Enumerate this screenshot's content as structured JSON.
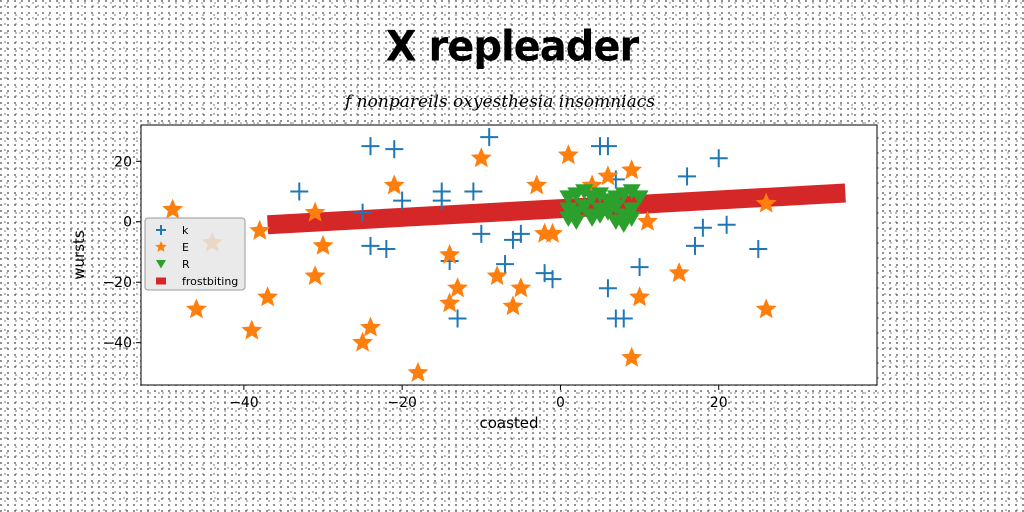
{
  "chart_data": {
    "type": "scatter",
    "title": "X repleader",
    "subtitle": "f nonpareils oxyesthesia insomniacs",
    "xlabel": "coasted",
    "ylabel": "wursts",
    "xlim": [
      -53,
      40
    ],
    "ylim": [
      -54,
      32
    ],
    "xticks": [
      -40,
      -20,
      0,
      20
    ],
    "yticks": [
      -40,
      -20,
      0,
      20
    ],
    "grid": false,
    "legend_position": "center-left",
    "series": [
      {
        "name": "k",
        "marker": "plus",
        "color": "#1f77b4",
        "points": [
          [
            -33,
            10
          ],
          [
            -24,
            25
          ],
          [
            -21,
            24
          ],
          [
            -20,
            7
          ],
          [
            -15,
            10
          ],
          [
            -15,
            7
          ],
          [
            -11,
            10
          ],
          [
            -9,
            28
          ],
          [
            -10,
            -4
          ],
          [
            -25,
            3
          ],
          [
            -24,
            -8
          ],
          [
            -22,
            -9
          ],
          [
            -14,
            -13
          ],
          [
            -13,
            -32
          ],
          [
            -7,
            -14
          ],
          [
            -6,
            -6
          ],
          [
            -5,
            -4
          ],
          [
            -2,
            -17
          ],
          [
            -1,
            -19
          ],
          [
            5,
            25
          ],
          [
            6,
            25
          ],
          [
            7,
            14
          ],
          [
            6,
            -22
          ],
          [
            7,
            -32
          ],
          [
            8,
            -32
          ],
          [
            10,
            -15
          ],
          [
            16,
            15
          ],
          [
            17,
            -8
          ],
          [
            18,
            -2
          ],
          [
            20,
            21
          ],
          [
            21,
            -1
          ],
          [
            25,
            -9
          ]
        ]
      },
      {
        "name": "E",
        "marker": "star",
        "color": "#ff7f0e",
        "points": [
          [
            -49,
            4
          ],
          [
            -44,
            -7
          ],
          [
            -38,
            -3
          ],
          [
            -37,
            -25
          ],
          [
            -31,
            3
          ],
          [
            -30,
            -8
          ],
          [
            -31,
            -18
          ],
          [
            -21,
            12
          ],
          [
            -14,
            -11
          ],
          [
            -14,
            -27
          ],
          [
            -13,
            -22
          ],
          [
            -10,
            21
          ],
          [
            -8,
            -18
          ],
          [
            -6,
            -28
          ],
          [
            -5,
            -22
          ],
          [
            -3,
            12
          ],
          [
            -2,
            -4
          ],
          [
            -1,
            -4
          ],
          [
            1,
            22
          ],
          [
            4,
            12
          ],
          [
            6,
            15
          ],
          [
            9,
            17
          ],
          [
            11,
            0
          ],
          [
            10,
            -25
          ],
          [
            9,
            -45
          ],
          [
            15,
            -17
          ],
          [
            26,
            6
          ],
          [
            26,
            -29
          ],
          [
            -46,
            -29
          ],
          [
            -39,
            -36
          ],
          [
            -24,
            -35
          ],
          [
            -25,
            -40
          ],
          [
            -18,
            -50
          ]
        ]
      },
      {
        "name": "R",
        "marker": "triangle-down",
        "color": "#2ca02c",
        "points": [
          [
            1,
            8
          ],
          [
            2,
            9
          ],
          [
            3,
            10
          ],
          [
            4,
            8
          ],
          [
            5,
            9
          ],
          [
            6,
            7
          ],
          [
            7,
            8
          ],
          [
            8,
            9
          ],
          [
            9,
            10
          ],
          [
            10,
            8
          ],
          [
            1,
            4
          ],
          [
            2,
            3
          ],
          [
            3,
            5
          ],
          [
            4,
            2
          ],
          [
            5,
            4
          ],
          [
            6,
            3
          ],
          [
            7,
            5
          ],
          [
            8,
            2
          ],
          [
            9,
            4
          ],
          [
            1,
            1
          ],
          [
            2,
            0
          ],
          [
            4,
            1
          ],
          [
            5,
            2
          ],
          [
            7,
            0
          ],
          [
            8,
            -1
          ],
          [
            9,
            1
          ]
        ]
      }
    ],
    "line_series": {
      "name": "frostbiting",
      "color": "#d62728",
      "x": [
        -37,
        36
      ],
      "y": [
        -1,
        9.5
      ]
    }
  },
  "legend": {
    "items": [
      {
        "label": "k",
        "color": "#1f77b4",
        "marker": "plus"
      },
      {
        "label": "E",
        "color": "#ff7f0e",
        "marker": "star"
      },
      {
        "label": "R",
        "color": "#2ca02c",
        "marker": "triangle-down"
      },
      {
        "label": "frostbiting",
        "color": "#d62728",
        "marker": "square"
      }
    ]
  }
}
